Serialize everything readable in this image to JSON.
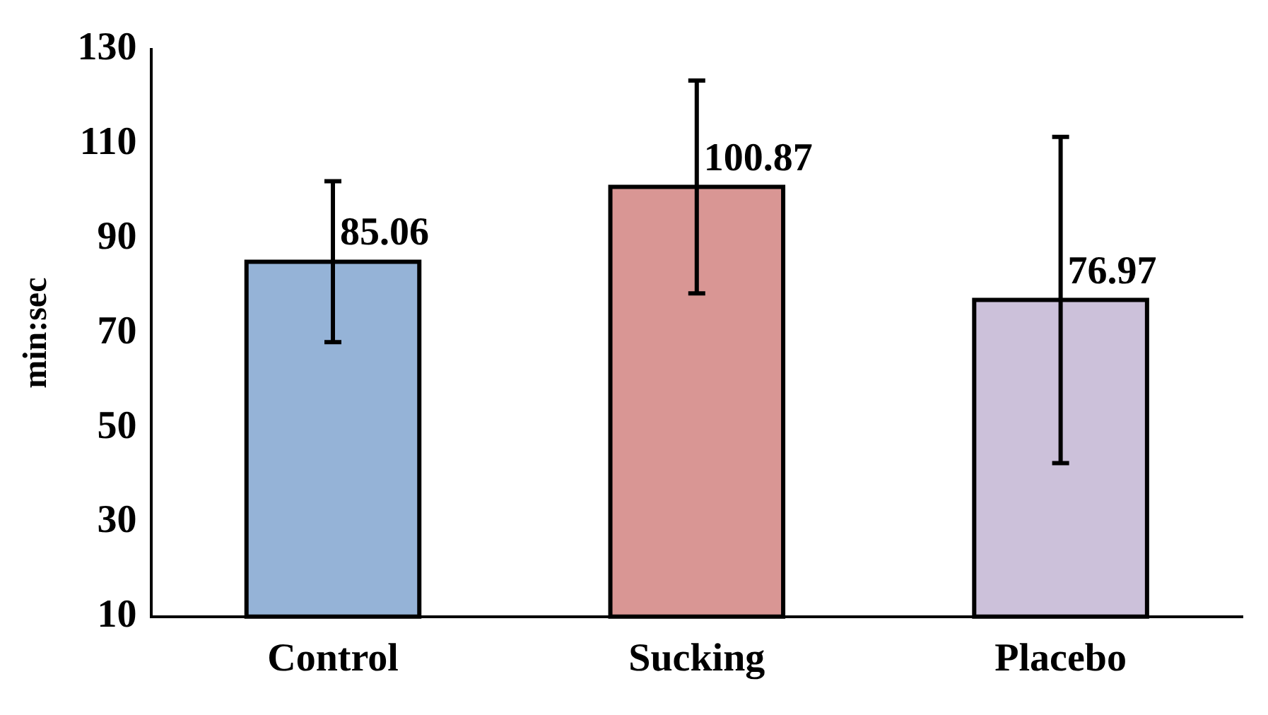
{
  "chart_data": {
    "type": "bar",
    "ylabel": "min:sec",
    "categories": [
      "Control",
      "Sucking",
      "Placebo"
    ],
    "values": [
      85.06,
      100.87,
      76.97
    ],
    "colors": [
      "#95b3d7",
      "#d99694",
      "#ccc1da"
    ],
    "errors": [
      17,
      22.5,
      34.5
    ],
    "ylim": [
      10,
      130
    ],
    "yticks": [
      10,
      30,
      50,
      70,
      90,
      110,
      130
    ],
    "grid": false,
    "legend": false,
    "data_labels": true
  }
}
